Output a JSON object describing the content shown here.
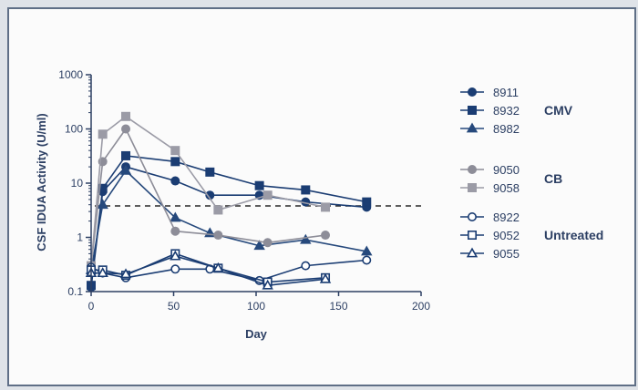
{
  "chart_data": {
    "type": "line",
    "ylabel": "CSF IDUA Activity (U/ml)",
    "xlabel": "Day",
    "y_scale": "log",
    "ylim": [
      0.1,
      1000
    ],
    "xlim": [
      0,
      200
    ],
    "x_ticks": [
      "0",
      "50",
      "100",
      "150",
      "200"
    ],
    "y_ticks": [
      "0.1",
      "1",
      "10",
      "100",
      "1000"
    ],
    "threshold_line": 3.8,
    "legend_groups": [
      {
        "label": "CMV",
        "members": [
          "8911",
          "8932",
          "8982"
        ]
      },
      {
        "label": "CB",
        "members": [
          "9050",
          "9058"
        ]
      },
      {
        "label": "Untreated",
        "members": [
          "8922",
          "9052",
          "9055"
        ]
      }
    ],
    "series": [
      {
        "name": "8911",
        "color": "#1b3d73",
        "marker": "circle",
        "filled": true,
        "points": [
          [
            0,
            0.12
          ],
          [
            7,
            7
          ],
          [
            21,
            20
          ],
          [
            51,
            11
          ],
          [
            72,
            6
          ],
          [
            102,
            6
          ],
          [
            130,
            4.5
          ],
          [
            167,
            3.6
          ]
        ]
      },
      {
        "name": "8932",
        "color": "#1b3d73",
        "marker": "square",
        "filled": true,
        "points": [
          [
            0,
            0.13
          ],
          [
            7,
            8
          ],
          [
            21,
            32
          ],
          [
            51,
            25
          ],
          [
            72,
            16
          ],
          [
            102,
            9
          ],
          [
            130,
            7.5
          ],
          [
            167,
            4.5
          ]
        ]
      },
      {
        "name": "8982",
        "color": "#26497c",
        "marker": "triangle",
        "filled": true,
        "points": [
          [
            0,
            0.25
          ],
          [
            7,
            4
          ],
          [
            21,
            17
          ],
          [
            51,
            2.3
          ],
          [
            72,
            1.2
          ],
          [
            102,
            0.7
          ],
          [
            130,
            0.9
          ],
          [
            167,
            0.55
          ]
        ]
      },
      {
        "name": "9050",
        "color": "#8d8d98",
        "marker": "circle",
        "filled": true,
        "points": [
          [
            0,
            0.3
          ],
          [
            7,
            25
          ],
          [
            21,
            100
          ],
          [
            51,
            1.3
          ],
          [
            77,
            1.1
          ],
          [
            107,
            0.8
          ],
          [
            142,
            1.1
          ]
        ]
      },
      {
        "name": "9058",
        "color": "#9b9ba6",
        "marker": "square",
        "filled": true,
        "points": [
          [
            0,
            0.3
          ],
          [
            7,
            80
          ],
          [
            21,
            170
          ],
          [
            51,
            40
          ],
          [
            77,
            3.2
          ],
          [
            107,
            6
          ],
          [
            142,
            3.6
          ]
        ]
      },
      {
        "name": "8922",
        "color": "#1b3d73",
        "marker": "circle",
        "filled": false,
        "points": [
          [
            0,
            0.28
          ],
          [
            7,
            0.22
          ],
          [
            21,
            0.18
          ],
          [
            51,
            0.26
          ],
          [
            72,
            0.26
          ],
          [
            102,
            0.16
          ],
          [
            130,
            0.3
          ],
          [
            167,
            0.38
          ]
        ]
      },
      {
        "name": "9052",
        "color": "#1b3d73",
        "marker": "square",
        "filled": false,
        "points": [
          [
            0,
            0.25
          ],
          [
            7,
            0.25
          ],
          [
            21,
            0.2
          ],
          [
            51,
            0.5
          ],
          [
            77,
            0.27
          ],
          [
            107,
            0.15
          ],
          [
            142,
            0.18
          ]
        ]
      },
      {
        "name": "9055",
        "color": "#1b3d73",
        "marker": "triangle",
        "filled": false,
        "points": [
          [
            0,
            0.22
          ],
          [
            7,
            0.22
          ],
          [
            21,
            0.21
          ],
          [
            51,
            0.45
          ],
          [
            77,
            0.27
          ],
          [
            107,
            0.13
          ],
          [
            142,
            0.17
          ]
        ]
      }
    ]
  }
}
